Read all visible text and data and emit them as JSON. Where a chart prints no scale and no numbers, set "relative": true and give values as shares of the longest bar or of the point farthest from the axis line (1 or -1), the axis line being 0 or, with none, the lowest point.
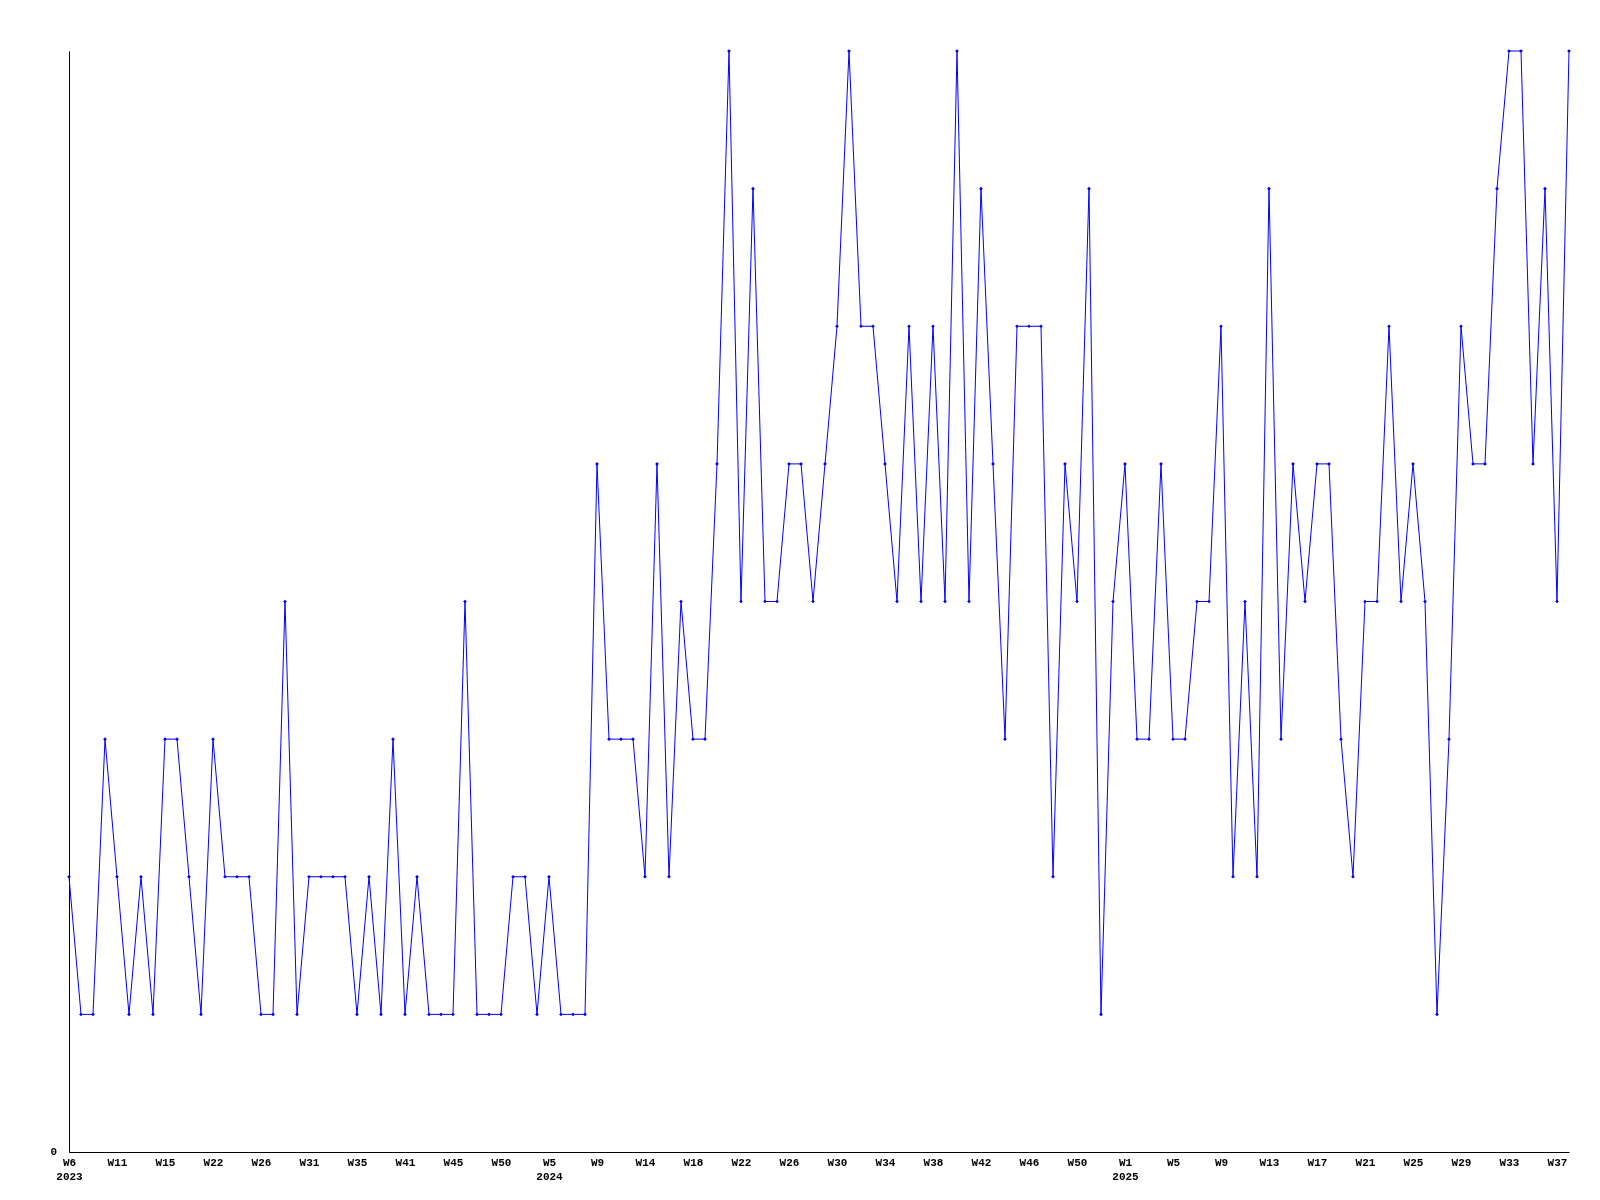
{
  "chart_data": {
    "type": "line",
    "relative": true,
    "marker": "diamond",
    "line_style": "solid",
    "grid": false,
    "annotations": [
      "0"
    ],
    "categories": [
      "W6\n2023",
      null,
      null,
      null,
      "W11",
      null,
      null,
      null,
      "W15",
      null,
      null,
      null,
      "W22",
      null,
      null,
      null,
      "W26",
      null,
      null,
      null,
      "W31",
      null,
      null,
      null,
      "W35",
      null,
      null,
      null,
      "W41",
      null,
      null,
      null,
      "W45",
      null,
      null,
      null,
      "W50",
      null,
      null,
      null,
      "W5\n2024",
      null,
      null,
      null,
      "W9",
      null,
      null,
      null,
      "W14",
      null,
      null,
      null,
      "W18",
      null,
      null,
      null,
      "W22",
      null,
      null,
      null,
      "W26",
      null,
      null,
      null,
      "W30",
      null,
      null,
      null,
      "W34",
      null,
      null,
      null,
      "W38",
      null,
      null,
      null,
      "W42",
      null,
      null,
      null,
      "W46",
      null,
      null,
      null,
      "W50",
      null,
      null,
      null,
      "W1\n2025",
      null,
      null,
      null,
      "W5",
      null,
      null,
      null,
      "W9",
      null,
      null,
      null,
      "W13",
      null,
      null,
      null,
      "W17",
      null,
      null,
      null,
      "W21",
      null,
      null,
      null,
      "W25",
      null,
      null,
      null,
      "W29",
      null,
      null,
      null,
      "W33",
      null,
      null,
      null,
      "W37",
      null
    ],
    "series": [
      {
        "color": "#0000ff",
        "values": [
          0.25,
          0.125,
          0.125,
          0.375,
          0.25,
          0.125,
          0.25,
          0.125,
          0.375,
          0.375,
          0.25,
          0.125,
          0.375,
          0.25,
          0.25,
          0.25,
          0.125,
          0.125,
          0.5,
          0.125,
          0.25,
          0.25,
          0.25,
          0.25,
          0.125,
          0.25,
          0.125,
          0.375,
          0.125,
          0.25,
          0.125,
          0.125,
          0.125,
          0.5,
          0.125,
          0.125,
          0.125,
          0.25,
          0.25,
          0.125,
          0.25,
          0.125,
          0.125,
          0.125,
          0.625,
          0.375,
          0.375,
          0.375,
          0.25,
          0.625,
          0.25,
          0.5,
          0.375,
          0.375,
          0.625,
          1,
          0.5,
          0.875,
          0.5,
          0.5,
          0.625,
          0.625,
          0.5,
          0.625,
          0.75,
          1,
          0.75,
          0.75,
          0.625,
          0.5,
          0.75,
          0.5,
          0.75,
          0.5,
          1,
          0.5,
          0.875,
          0.625,
          0.375,
          0.75,
          0.75,
          0.75,
          0.25,
          0.625,
          0.5,
          0.875,
          0.125,
          0.5,
          0.625,
          0.375,
          0.375,
          0.625,
          0.375,
          0.375,
          0.5,
          0.5,
          0.75,
          0.25,
          0.5,
          0.25,
          0.875,
          0.375,
          0.625,
          0.5,
          0.625,
          0.625,
          0.375,
          0.25,
          0.5,
          0.5,
          0.75,
          0.5,
          0.625,
          0.5,
          0.125,
          0.375,
          0.75,
          0.625,
          0.625,
          0.875,
          1,
          1,
          0.625,
          0.875,
          0.5,
          1
        ]
      }
    ]
  }
}
